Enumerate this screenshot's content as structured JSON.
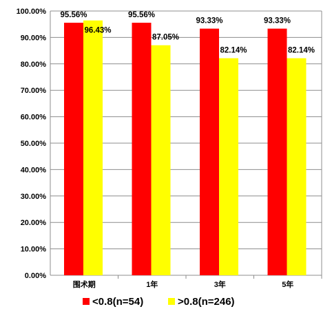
{
  "chart_data": {
    "type": "bar",
    "categories": [
      "围术期",
      "1年",
      "3年",
      "5年"
    ],
    "series": [
      {
        "name": "<0.8(n=54)",
        "color": "#ff0000",
        "values": [
          95.56,
          95.56,
          93.33,
          93.33
        ],
        "labels": [
          "95.56%",
          "95.56%",
          "93.33%",
          "93.33%"
        ]
      },
      {
        "name": ">0.8(n=246)",
        "color": "#ffff00",
        "values": [
          96.43,
          87.05,
          82.14,
          82.14
        ],
        "labels": [
          "96.43%",
          "87.05%",
          "82.14%",
          "82.14%"
        ]
      }
    ],
    "ylim": [
      0,
      100
    ],
    "yticks": [
      "0.00%",
      "10.00%",
      "20.00%",
      "30.00%",
      "40.00%",
      "50.00%",
      "60.00%",
      "70.00%",
      "80.00%",
      "90.00%",
      "100.00%"
    ],
    "grid": true,
    "legend_position": "bottom",
    "title": "",
    "xlabel": "",
    "ylabel": ""
  }
}
